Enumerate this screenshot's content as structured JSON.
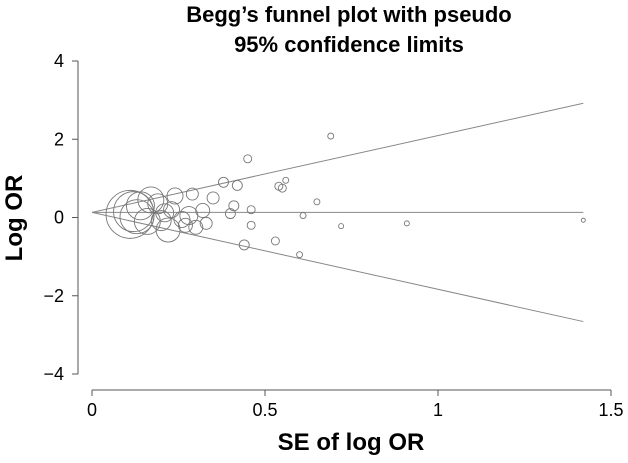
{
  "chart_data": {
    "type": "scatter",
    "title_lines": [
      "Begg’s funnel plot with pseudo",
      "95% confidence limits"
    ],
    "xlabel": "SE of log OR",
    "ylabel": "Log OR",
    "xlim": [
      0,
      1.5
    ],
    "ylim": [
      -4,
      4
    ],
    "x_ticks": [
      0,
      0.5,
      1,
      1.5
    ],
    "x_tick_labels": [
      "0",
      "0.5",
      "1",
      "1.5"
    ],
    "y_ticks": [
      -4,
      -2,
      0,
      2,
      4
    ],
    "y_tick_labels": [
      "−4",
      "−2",
      "0",
      "2",
      "4"
    ],
    "grid": false,
    "pooled_log_or": 0.13,
    "upper_limit": [
      [
        0,
        0.13
      ],
      [
        1.42,
        2.92
      ]
    ],
    "lower_limit": [
      [
        0,
        0.13
      ],
      [
        1.42,
        -2.66
      ]
    ],
    "points": [
      {
        "se": 0.11,
        "log_or": 0.08,
        "weight": 24
      },
      {
        "se": 0.12,
        "log_or": 0.15,
        "weight": 20
      },
      {
        "se": 0.13,
        "log_or": 0.02,
        "weight": 17
      },
      {
        "se": 0.14,
        "log_or": 0.3,
        "weight": 14
      },
      {
        "se": 0.16,
        "log_or": -0.1,
        "weight": 13
      },
      {
        "se": 0.17,
        "log_or": 0.45,
        "weight": 13
      },
      {
        "se": 0.19,
        "log_or": 0.35,
        "weight": 10
      },
      {
        "se": 0.2,
        "log_or": -0.08,
        "weight": 10
      },
      {
        "se": 0.22,
        "log_or": -0.32,
        "weight": 12
      },
      {
        "se": 0.21,
        "log_or": 0.12,
        "weight": 9
      },
      {
        "se": 0.23,
        "log_or": 0.2,
        "weight": 8
      },
      {
        "se": 0.24,
        "log_or": 0.55,
        "weight": 8
      },
      {
        "se": 0.26,
        "log_or": -0.05,
        "weight": 8
      },
      {
        "se": 0.27,
        "log_or": -0.2,
        "weight": 7
      },
      {
        "se": 0.28,
        "log_or": 0.05,
        "weight": 9
      },
      {
        "se": 0.29,
        "log_or": 0.6,
        "weight": 6
      },
      {
        "se": 0.3,
        "log_or": -0.25,
        "weight": 7
      },
      {
        "se": 0.32,
        "log_or": 0.18,
        "weight": 7
      },
      {
        "se": 0.33,
        "log_or": -0.15,
        "weight": 6
      },
      {
        "se": 0.35,
        "log_or": 0.5,
        "weight": 6
      },
      {
        "se": 0.38,
        "log_or": 0.9,
        "weight": 5
      },
      {
        "se": 0.4,
        "log_or": 0.1,
        "weight": 5
      },
      {
        "se": 0.41,
        "log_or": 0.3,
        "weight": 5
      },
      {
        "se": 0.42,
        "log_or": 0.82,
        "weight": 5
      },
      {
        "se": 0.44,
        "log_or": -0.7,
        "weight": 5
      },
      {
        "se": 0.45,
        "log_or": 1.5,
        "weight": 4
      },
      {
        "se": 0.46,
        "log_or": 0.2,
        "weight": 4
      },
      {
        "se": 0.46,
        "log_or": -0.2,
        "weight": 4
      },
      {
        "se": 0.53,
        "log_or": -0.6,
        "weight": 4
      },
      {
        "se": 0.54,
        "log_or": 0.8,
        "weight": 4
      },
      {
        "se": 0.55,
        "log_or": 0.75,
        "weight": 4
      },
      {
        "se": 0.56,
        "log_or": 0.95,
        "weight": 3
      },
      {
        "se": 0.6,
        "log_or": -0.95,
        "weight": 3
      },
      {
        "se": 0.61,
        "log_or": 0.05,
        "weight": 3
      },
      {
        "se": 0.65,
        "log_or": 0.4,
        "weight": 3
      },
      {
        "se": 0.69,
        "log_or": 2.08,
        "weight": 3
      },
      {
        "se": 0.72,
        "log_or": -0.22,
        "weight": 2.5
      },
      {
        "se": 0.91,
        "log_or": -0.15,
        "weight": 2.5
      },
      {
        "se": 1.42,
        "log_or": -0.07,
        "weight": 2
      }
    ],
    "colors": {
      "axes": "#555555",
      "lines": "#888888",
      "markers": "#777777"
    }
  }
}
